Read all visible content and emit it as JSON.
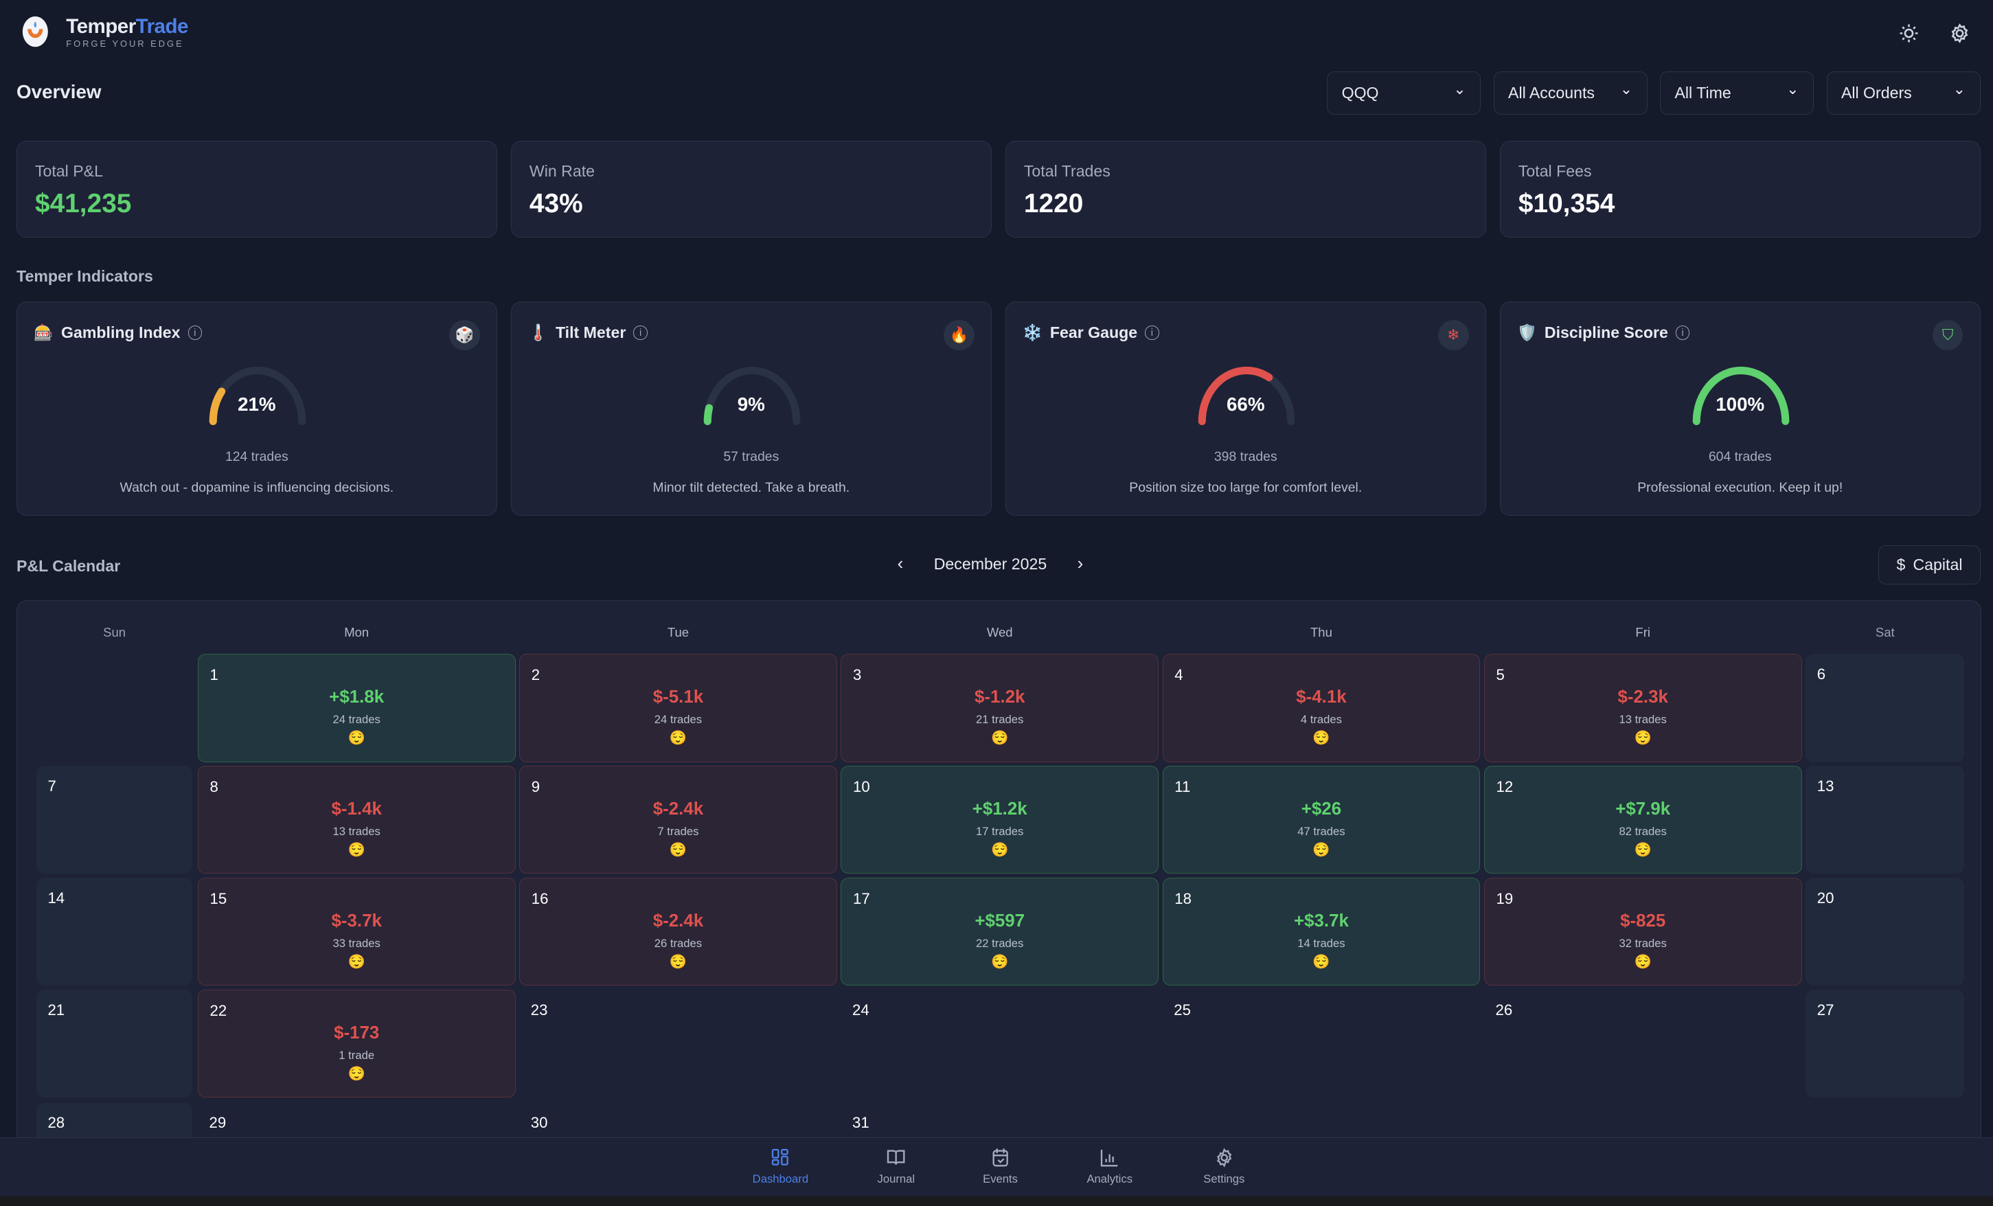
{
  "header": {
    "brand_a": "Temper",
    "brand_b": "Trade",
    "tagline": "FORGE YOUR EDGE"
  },
  "page_title": "Overview",
  "filters": [
    "QQQ",
    "All Accounts",
    "All Time",
    "All Orders"
  ],
  "stats": [
    {
      "label": "Total P&L",
      "value": "$41,235",
      "color": "#5fd16f"
    },
    {
      "label": "Win Rate",
      "value": "43%"
    },
    {
      "label": "Total Trades",
      "value": "1220"
    },
    {
      "label": "Total Fees",
      "value": "$10,354"
    }
  ],
  "indicators_title": "Temper Indicators",
  "indicators": [
    {
      "emoji": "🎰",
      "title": "Gambling Index",
      "badge_icon": "dice-icon",
      "badge": "🎲",
      "value": 21,
      "value_label": "21%",
      "color": "#f0ad3e",
      "trades": "124 trades",
      "message": "Watch out - dopamine is influencing decisions."
    },
    {
      "emoji": "🌡️",
      "title": "Tilt Meter",
      "badge_icon": "flame-icon",
      "badge": "🔥",
      "value": 9,
      "value_label": "9%",
      "color": "#5fd16f",
      "trades": "57 trades",
      "message": "Minor tilt detected. Take a breath."
    },
    {
      "emoji": "❄️",
      "title": "Fear Gauge",
      "badge_icon": "snowflake-icon",
      "badge": "❄",
      "value": 66,
      "value_label": "66%",
      "color": "#e0524d",
      "trades": "398 trades",
      "message": "Position size too large for comfort level."
    },
    {
      "emoji": "🛡️",
      "title": "Discipline Score",
      "badge_icon": "shield-icon",
      "badge": "⛉",
      "value": 100,
      "value_label": "100%",
      "color": "#5fd16f",
      "trades": "604 trades",
      "message": "Professional execution. Keep it up!"
    }
  ],
  "calendar": {
    "title": "P&L Calendar",
    "month": "December 2025",
    "capital_label": "Capital",
    "days": [
      "Sun",
      "Mon",
      "Tue",
      "Wed",
      "Thu",
      "Fri",
      "Sat"
    ],
    "weeks": [
      [
        null,
        {
          "d": "1",
          "pnl": "+$1.8k",
          "trades": "24 trades",
          "mood": "😌",
          "s": "pos"
        },
        {
          "d": "2",
          "pnl": "$-5.1k",
          "trades": "24 trades",
          "mood": "😌",
          "s": "neg"
        },
        {
          "d": "3",
          "pnl": "$-1.2k",
          "trades": "21 trades",
          "mood": "😌",
          "s": "neg"
        },
        {
          "d": "4",
          "pnl": "$-4.1k",
          "trades": "4 trades",
          "mood": "😌",
          "s": "neg"
        },
        {
          "d": "5",
          "pnl": "$-2.3k",
          "trades": "13 trades",
          "mood": "😌",
          "s": "neg"
        },
        {
          "d": "6"
        }
      ],
      [
        {
          "d": "7"
        },
        {
          "d": "8",
          "pnl": "$-1.4k",
          "trades": "13 trades",
          "mood": "😌",
          "s": "neg"
        },
        {
          "d": "9",
          "pnl": "$-2.4k",
          "trades": "7 trades",
          "mood": "😌",
          "s": "neg"
        },
        {
          "d": "10",
          "pnl": "+$1.2k",
          "trades": "17 trades",
          "mood": "😌",
          "s": "pos"
        },
        {
          "d": "11",
          "pnl": "+$26",
          "trades": "47 trades",
          "mood": "😌",
          "s": "pos"
        },
        {
          "d": "12",
          "pnl": "+$7.9k",
          "trades": "82 trades",
          "mood": "😌",
          "s": "pos"
        },
        {
          "d": "13"
        }
      ],
      [
        {
          "d": "14"
        },
        {
          "d": "15",
          "pnl": "$-3.7k",
          "trades": "33 trades",
          "mood": "😌",
          "s": "neg"
        },
        {
          "d": "16",
          "pnl": "$-2.4k",
          "trades": "26 trades",
          "mood": "😌",
          "s": "neg"
        },
        {
          "d": "17",
          "pnl": "+$597",
          "trades": "22 trades",
          "mood": "😌",
          "s": "pos"
        },
        {
          "d": "18",
          "pnl": "+$3.7k",
          "trades": "14 trades",
          "mood": "😌",
          "s": "pos"
        },
        {
          "d": "19",
          "pnl": "$-825",
          "trades": "32 trades",
          "mood": "😌",
          "s": "neg"
        },
        {
          "d": "20"
        }
      ],
      [
        {
          "d": "21"
        },
        {
          "d": "22",
          "pnl": "$-173",
          "trades": "1 trade",
          "mood": "😌",
          "s": "neg"
        },
        {
          "d": "23"
        },
        {
          "d": "24"
        },
        {
          "d": "25"
        },
        {
          "d": "26"
        },
        {
          "d": "27"
        }
      ],
      [
        {
          "d": "28"
        },
        {
          "d": "29"
        },
        {
          "d": "30"
        },
        {
          "d": "31"
        },
        null,
        null,
        null
      ]
    ]
  },
  "bottom_nav": [
    {
      "label": "Dashboard",
      "icon": "dashboard-icon",
      "active": true
    },
    {
      "label": "Journal",
      "icon": "book-icon"
    },
    {
      "label": "Events",
      "icon": "calendar-check-icon"
    },
    {
      "label": "Analytics",
      "icon": "bar-chart-icon"
    },
    {
      "label": "Settings",
      "icon": "gear-icon"
    }
  ],
  "colors": {
    "accent": "#4f7fe8",
    "positive": "#5fd16f",
    "negative": "#e0524d",
    "background": "#141a29",
    "card": "#1d2236"
  }
}
